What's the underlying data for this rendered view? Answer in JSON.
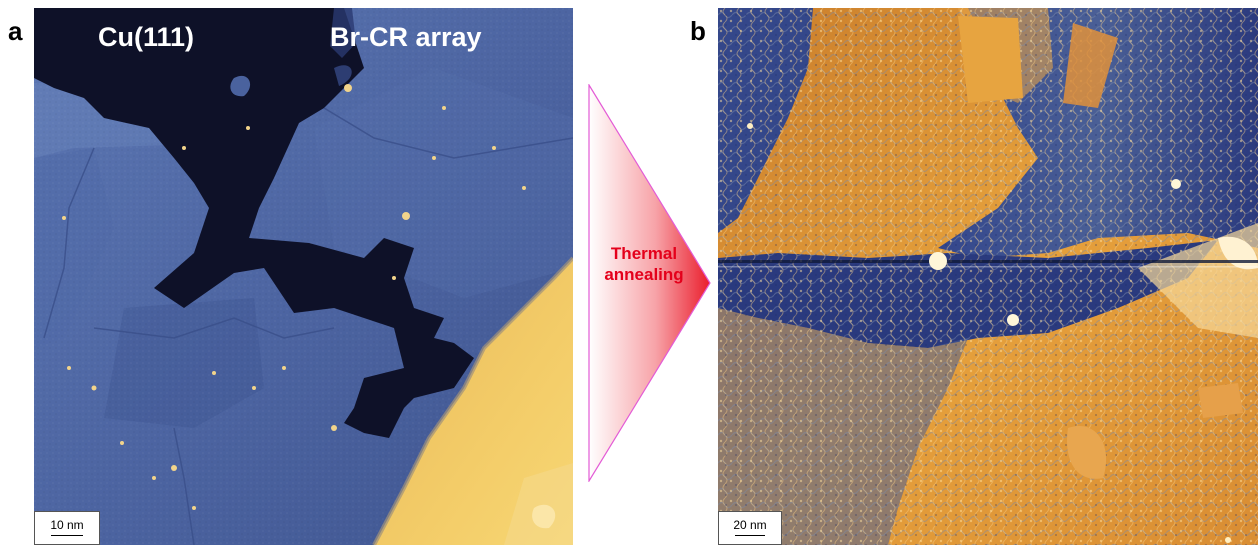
{
  "panels": {
    "a": {
      "letter": "a",
      "labels": {
        "substrate": "Cu(111)",
        "array": "Br-CR array"
      },
      "scalebar": "10 nm"
    },
    "b": {
      "letter": "b",
      "scalebar": "20 nm"
    }
  },
  "arrow": {
    "label_line1": "Thermal",
    "label_line2": "annealing",
    "label_color": "#e4001b",
    "stroke_color": "#e35bd6"
  },
  "colors": {
    "terrace_blue": "#4a629e",
    "dark_substrate": "#0d1026",
    "bright_step": "#f2c35a",
    "orange_terrace": "#e49b3a",
    "deep_blue": "#2a3a80"
  }
}
